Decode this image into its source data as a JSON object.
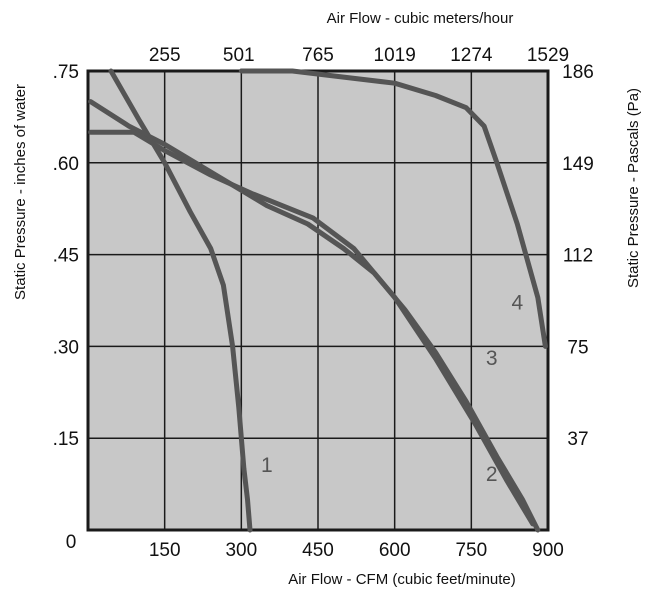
{
  "chart_data": {
    "type": "line",
    "xlabel_bottom": "Air Flow - CFM (cubic feet/minute)",
    "xlabel_top": "Air Flow  -  cubic meters/hour",
    "ylabel_left": "Static Pressure - inches of water",
    "ylabel_right": "Static Pressure - Pascals (Pa)",
    "origin_label": "0",
    "xlim": [
      0,
      900
    ],
    "ylim": [
      0,
      0.75
    ],
    "grid": true,
    "bottom_ticks": [
      {
        "value": 150,
        "label": "150"
      },
      {
        "value": 300,
        "label": "300"
      },
      {
        "value": 450,
        "label": "450"
      },
      {
        "value": 600,
        "label": "600"
      },
      {
        "value": 750,
        "label": "750"
      },
      {
        "value": 900,
        "label": "900"
      }
    ],
    "top_ticks": [
      {
        "value": 150,
        "label": "255"
      },
      {
        "value": 295,
        "label": "501"
      },
      {
        "value": 450,
        "label": "765"
      },
      {
        "value": 600,
        "label": "1019"
      },
      {
        "value": 750,
        "label": "1274"
      },
      {
        "value": 900,
        "label": "1529"
      }
    ],
    "left_ticks": [
      {
        "value": 0.15,
        "label": ".15"
      },
      {
        "value": 0.3,
        "label": ".30"
      },
      {
        "value": 0.45,
        "label": ".45"
      },
      {
        "value": 0.6,
        "label": ".60"
      },
      {
        "value": 0.75,
        "label": ".75"
      }
    ],
    "right_ticks": [
      {
        "value": 0.15,
        "label": "37"
      },
      {
        "value": 0.3,
        "label": "75"
      },
      {
        "value": 0.45,
        "label": "112"
      },
      {
        "value": 0.6,
        "label": "149"
      },
      {
        "value": 0.75,
        "label": "186"
      }
    ],
    "colors": {
      "plot_bg": "#c8c8c8",
      "grid": "#1a1a1a",
      "curve": "#555555",
      "frame": "#1a1a1a"
    },
    "series": [
      {
        "name": "1",
        "label_at": {
          "x": 350,
          "y": 0.095
        },
        "points": [
          [
            45,
            0.75
          ],
          [
            100,
            0.67
          ],
          [
            150,
            0.6
          ],
          [
            200,
            0.52
          ],
          [
            240,
            0.46
          ],
          [
            265,
            0.4
          ],
          [
            283,
            0.3
          ],
          [
            295,
            0.2
          ],
          [
            305,
            0.1
          ],
          [
            312,
            0.05
          ],
          [
            317,
            0.0
          ]
        ]
      },
      {
        "name": "2",
        "label_at": {
          "x": 790,
          "y": 0.08
        },
        "points": [
          [
            5,
            0.7
          ],
          [
            80,
            0.66
          ],
          [
            150,
            0.63
          ],
          [
            250,
            0.58
          ],
          [
            350,
            0.53
          ],
          [
            430,
            0.5
          ],
          [
            500,
            0.46
          ],
          [
            560,
            0.42
          ],
          [
            620,
            0.36
          ],
          [
            680,
            0.29
          ],
          [
            740,
            0.21
          ],
          [
            800,
            0.12
          ],
          [
            850,
            0.05
          ],
          [
            880,
            0.0
          ]
        ]
      },
      {
        "name": "3",
        "label_at": {
          "x": 790,
          "y": 0.27
        },
        "points": [
          [
            5,
            0.65
          ],
          [
            90,
            0.65
          ],
          [
            150,
            0.62
          ],
          [
            240,
            0.58
          ],
          [
            320,
            0.55
          ],
          [
            440,
            0.51
          ],
          [
            520,
            0.46
          ],
          [
            600,
            0.38
          ],
          [
            680,
            0.28
          ],
          [
            760,
            0.17
          ],
          [
            820,
            0.08
          ],
          [
            870,
            0.01
          ]
        ]
      },
      {
        "name": "4",
        "label_at": {
          "x": 840,
          "y": 0.36
        },
        "points": [
          [
            300,
            0.75
          ],
          [
            400,
            0.75
          ],
          [
            500,
            0.74
          ],
          [
            600,
            0.73
          ],
          [
            680,
            0.71
          ],
          [
            740,
            0.69
          ],
          [
            775,
            0.66
          ],
          [
            800,
            0.6
          ],
          [
            840,
            0.5
          ],
          [
            880,
            0.38
          ],
          [
            895,
            0.3
          ]
        ]
      }
    ]
  }
}
